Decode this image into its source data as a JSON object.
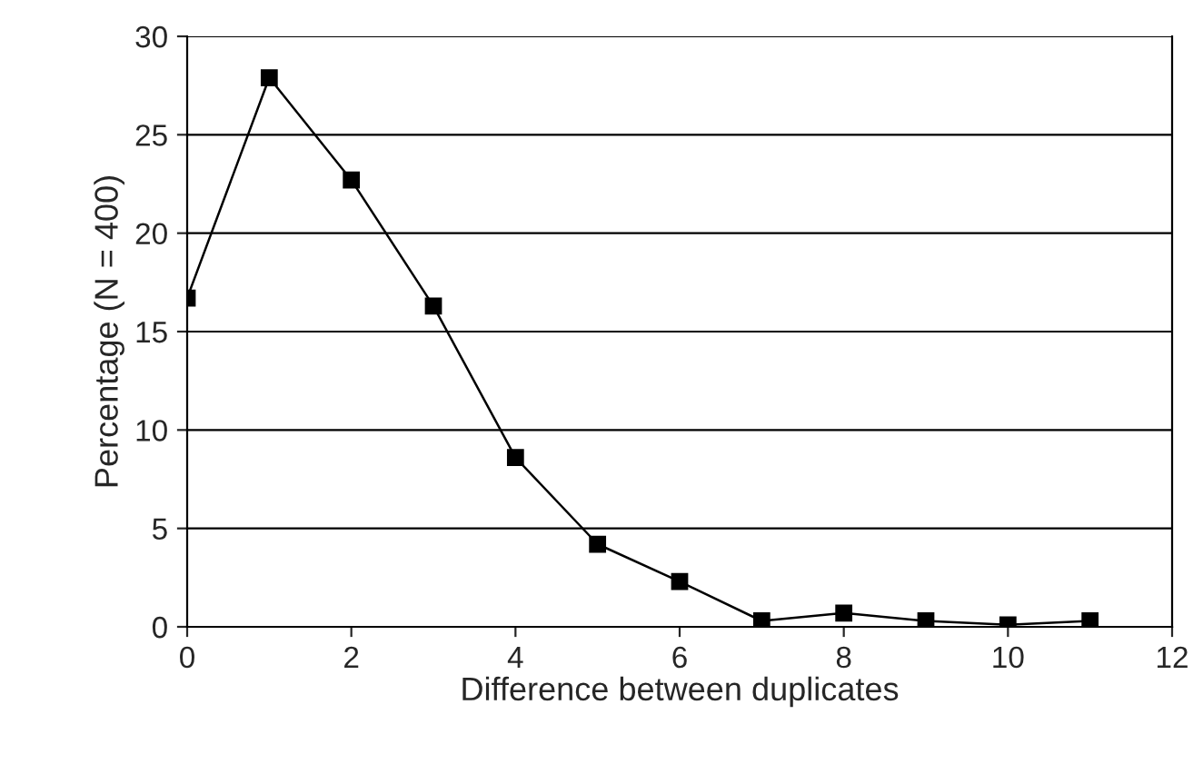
{
  "chart_data": {
    "type": "line",
    "xlabel": "Difference between duplicates",
    "ylabel": "Percentage (N = 400)",
    "x": [
      0,
      1,
      2,
      3,
      4,
      5,
      6,
      7,
      8,
      9,
      10,
      11
    ],
    "series": [
      {
        "color": "#000000",
        "values": [
          16.7,
          27.9,
          22.7,
          16.3,
          8.6,
          4.2,
          2.3,
          0.3,
          0.7,
          0.3,
          0.1,
          0.3
        ]
      }
    ],
    "xlim": [
      0,
      12
    ],
    "xticks": [
      0,
      2,
      4,
      6,
      8,
      10,
      12
    ],
    "ylim": [
      0,
      30
    ],
    "yticks": [
      0,
      5,
      10,
      15,
      20,
      25,
      30
    ],
    "grid": "y",
    "marker": "square",
    "line_style": "solid",
    "legend": false
  }
}
